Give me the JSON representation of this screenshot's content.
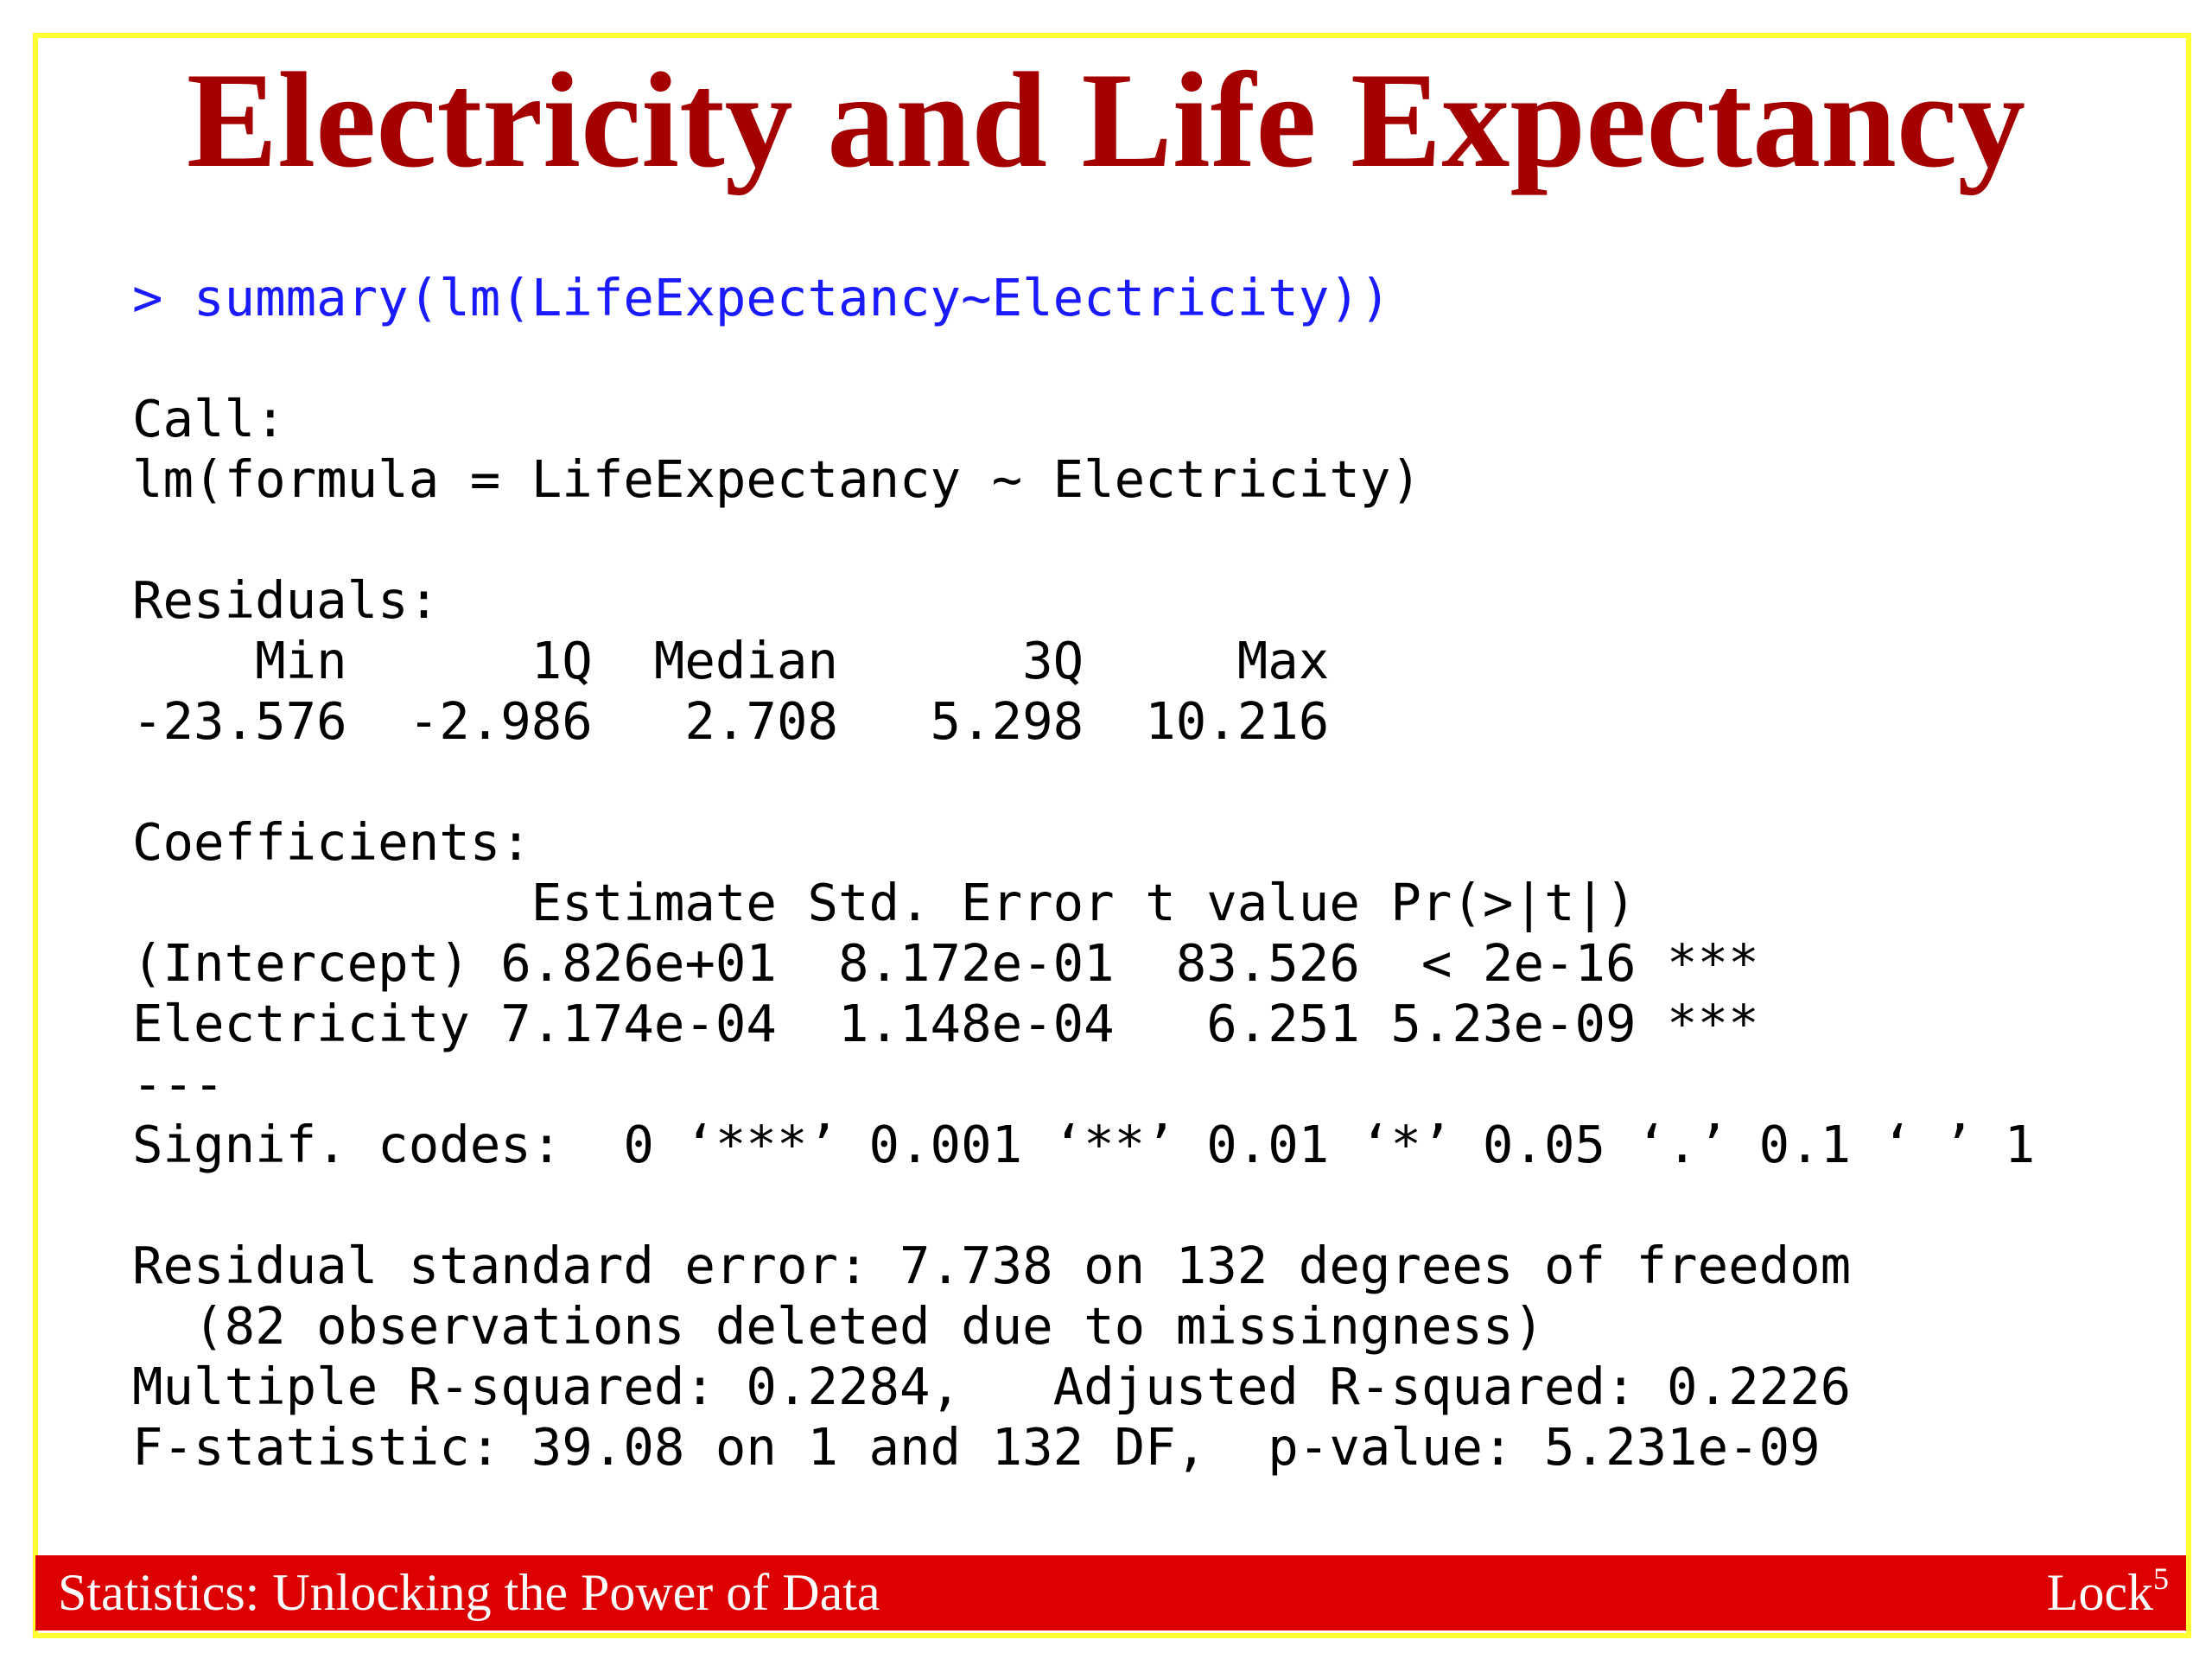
{
  "title": "Electricity and Life Expectancy",
  "console": {
    "command": "> summary(lm(LifeExpectancy~Electricity))",
    "blocks": [
      [
        "Call:",
        "lm(formula = LifeExpectancy ~ Electricity)"
      ],
      [
        "Residuals:",
        "    Min      1Q  Median      3Q     Max ",
        "-23.576  -2.986   2.708   5.298  10.216 "
      ],
      [
        "Coefficients:",
        "             Estimate Std. Error t value Pr(>|t|)    ",
        "(Intercept) 6.826e+01  8.172e-01  83.526  < 2e-16 ***",
        "Electricity 7.174e-04  1.148e-04   6.251 5.23e-09 ***",
        "---",
        "Signif. codes:  0 ‘***’ 0.001 ‘**’ 0.01 ‘*’ 0.05 ‘.’ 0.1 ‘ ’ 1"
      ],
      [
        "Residual standard error: 7.738 on 132 degrees of freedom",
        "  (82 observations deleted due to missingness)",
        "Multiple R-squared: 0.2284,\tAdjusted R-squared: 0.2226 ",
        "F-statistic: 39.08 on 1 and 132 DF,  p-value: 5.231e-09"
      ]
    ]
  },
  "footer": {
    "left": "Statistics: Unlocking the Power of Data",
    "right": "Lock",
    "right_sup": "5"
  }
}
